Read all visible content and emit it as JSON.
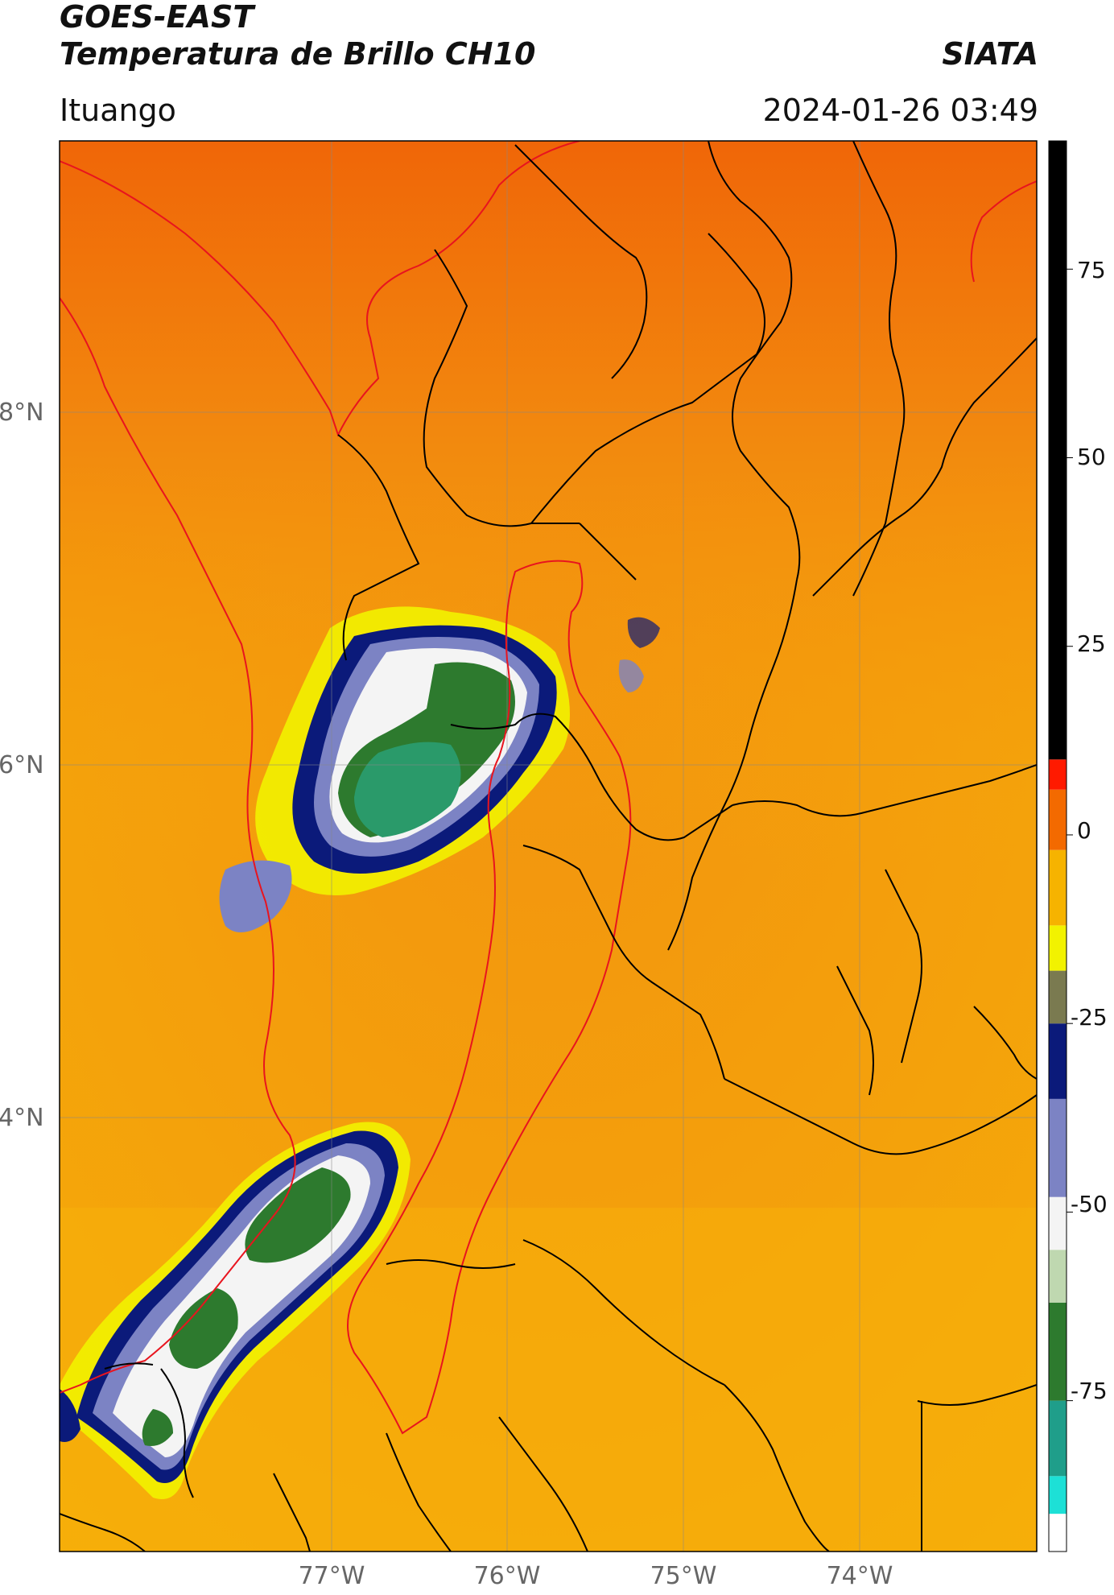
{
  "header": {
    "satellite": "GOES-EAST",
    "product": "Temperatura de Brillo CH10",
    "agency": "SIATA",
    "region": "Ituango",
    "datetime": "2024-01-26 03:49"
  },
  "map": {
    "latitude_labels": [
      "8°N",
      "6°N",
      "4°N"
    ],
    "longitude_labels": [
      "77°W",
      "76°W",
      "75°W",
      "74°W"
    ],
    "gridlines": true,
    "colors": {
      "warm_background": "#f08a14",
      "coast_border": "#e8141e",
      "admin_border": "#000000",
      "cloud_cold": "#2a8a4e"
    }
  },
  "colorbar": {
    "tick_labels": [
      "75",
      "50",
      "25",
      "0",
      "-25",
      "-50",
      "-75"
    ],
    "placement": "right",
    "segments": [
      {
        "from": -95,
        "to": -90,
        "color": "#ffffff"
      },
      {
        "from": -90,
        "to": -85,
        "color": "#1de0d6"
      },
      {
        "from": -85,
        "to": -75,
        "color": "#1f9e8a"
      },
      {
        "from": -75,
        "to": -62,
        "color": "#2d7a2e"
      },
      {
        "from": -62,
        "to": -55,
        "color": "#bfd8b0"
      },
      {
        "from": -55,
        "to": -48,
        "color": "#f4f4f4"
      },
      {
        "from": -48,
        "to": -35,
        "color": "#7c83c4"
      },
      {
        "from": -35,
        "to": -25,
        "color": "#0b1a7a"
      },
      {
        "from": -25,
        "to": -18,
        "color": "#7a7a50"
      },
      {
        "from": -18,
        "to": -12,
        "color": "#f2f200"
      },
      {
        "from": -12,
        "to": -2,
        "color": "#f6b300"
      },
      {
        "from": -2,
        "to": 6,
        "color": "#f36a00"
      },
      {
        "from": 6,
        "to": 10,
        "color": "#ff1a00"
      },
      {
        "from": 10,
        "to": 92,
        "color": "#000000"
      }
    ]
  }
}
